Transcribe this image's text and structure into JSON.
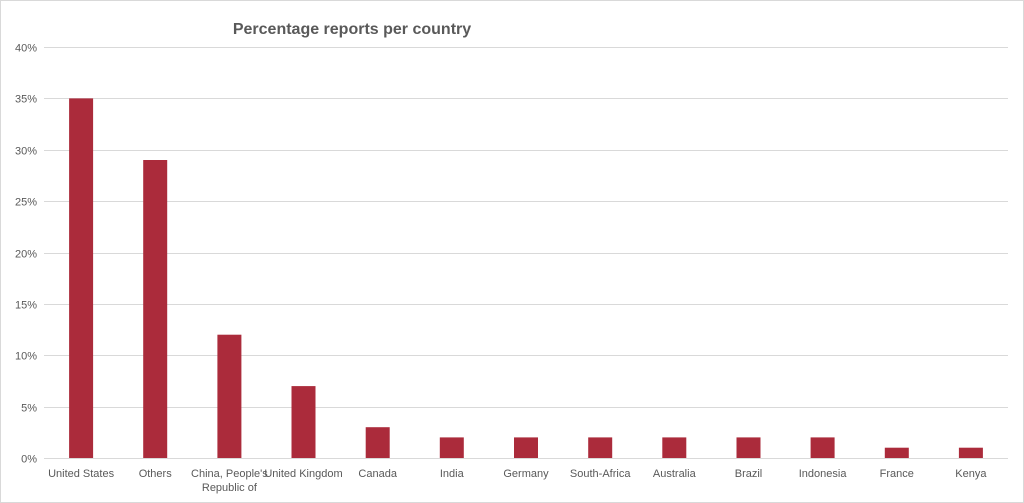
{
  "chart_data": {
    "type": "bar",
    "title": "Percentage reports per country",
    "xlabel": "",
    "ylabel": "",
    "ylim": [
      0,
      40
    ],
    "y_tick_step": 5,
    "y_tick_format": "percent",
    "grid": true,
    "legend": "none",
    "bar_color": "#ab2b3b",
    "grid_color": "#d9d9d9",
    "categories": [
      "United States",
      "Others",
      "China, People's Republic of",
      "United Kingdom",
      "Canada",
      "India",
      "Germany",
      "South-Africa",
      "Australia",
      "Brazil",
      "Indonesia",
      "France",
      "Kenya"
    ],
    "category_lines": [
      [
        "United States"
      ],
      [
        "Others"
      ],
      [
        "China, People's",
        "Republic of"
      ],
      [
        "United Kingdom"
      ],
      [
        "Canada"
      ],
      [
        "India"
      ],
      [
        "Germany"
      ],
      [
        "South-Africa"
      ],
      [
        "Australia"
      ],
      [
        "Brazil"
      ],
      [
        "Indonesia"
      ],
      [
        "France"
      ],
      [
        "Kenya"
      ]
    ],
    "values": [
      35,
      29,
      12,
      7,
      3,
      2,
      2,
      2,
      2,
      2,
      2,
      1,
      1
    ]
  }
}
